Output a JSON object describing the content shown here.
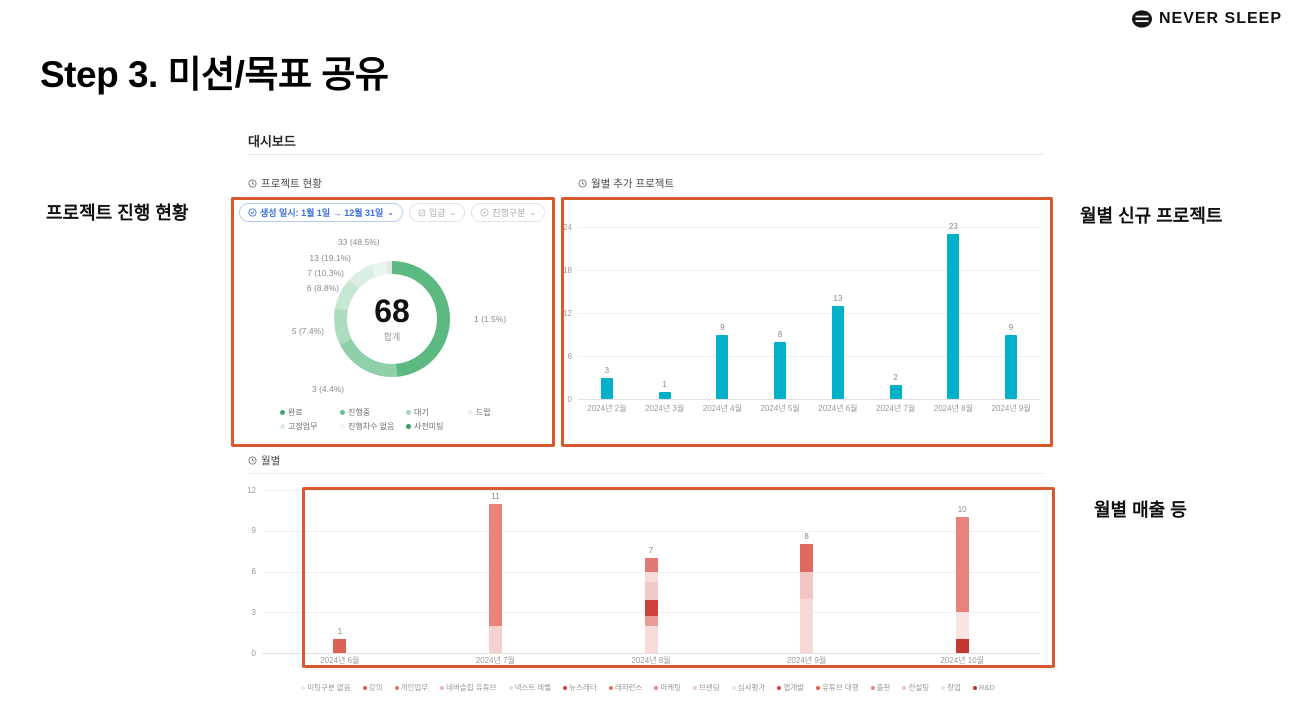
{
  "brand": {
    "name": "NEVER SLEEP"
  },
  "title": "Step 3. 미션/목표 공유",
  "annotations": {
    "left": "프로젝트 진행 현황",
    "right_top": "월별 신규 프로젝트",
    "right_bottom": "월별 매출 등"
  },
  "dashboard": {
    "title": "대시보드"
  },
  "filters": [
    {
      "label": "생성 일시: 1월 1일 → 12월 31일",
      "active": true
    },
    {
      "label": "입금",
      "active": false
    },
    {
      "label": "진행구분",
      "active": false
    }
  ],
  "icons": {
    "chevron_down": "⌄"
  },
  "chart_data": [
    {
      "type": "pie",
      "title": "프로젝트 현황",
      "center_value": "68",
      "center_label": "합계",
      "slices": [
        {
          "label": "완료",
          "value": 33,
          "pct": "48.5%",
          "color": "#5bb981"
        },
        {
          "label": "진행중",
          "value": 13,
          "pct": "19.1%",
          "color": "#8fd0a9"
        },
        {
          "label": "대기",
          "value": 7,
          "pct": "10.3%",
          "color": "#aedcc0"
        },
        {
          "label": "사전미팅",
          "value": 6,
          "pct": "8.8%",
          "color": "#c5e7d3"
        },
        {
          "label": "고정업무",
          "value": 5,
          "pct": "7.4%",
          "color": "#daeee2"
        },
        {
          "label": "진행차수 없음",
          "value": 3,
          "pct": "4.4%",
          "color": "#eaf5ee"
        },
        {
          "label": "드랍",
          "value": 1,
          "pct": "1.5%",
          "color": "#e3e6e3"
        }
      ],
      "legend": [
        {
          "label": "완료",
          "color": "#3fa873"
        },
        {
          "label": "진행중",
          "color": "#66c091"
        },
        {
          "label": "대기",
          "color": "#a3d8bb"
        },
        {
          "label": "드랍",
          "color": "#e7f2eb"
        },
        {
          "label": "고정업무",
          "color": "#dcede3"
        },
        {
          "label": "진행차수 없음",
          "color": "#eef6f1"
        },
        {
          "label": "사전미팅",
          "color": "#31a065"
        }
      ]
    },
    {
      "type": "bar",
      "title": "월별 추가 프로젝트",
      "categories": [
        "2024년 2월",
        "2024년 3월",
        "2024년 4월",
        "2024년 5월",
        "2024년 6월",
        "2024년 7월",
        "2024년 8월",
        "2024년 9월"
      ],
      "values": [
        3,
        1,
        9,
        8,
        13,
        2,
        23,
        9
      ],
      "ylim": [
        0,
        24
      ],
      "yticks": [
        24,
        18,
        12,
        6,
        0
      ],
      "bar_color": "#00b1c9"
    },
    {
      "type": "stacked-bar",
      "title": "월별",
      "ylim": [
        0,
        12
      ],
      "yticks": [
        12,
        9,
        6,
        3,
        0
      ],
      "bars": [
        {
          "category": "2024년 6월",
          "total": 1,
          "segments": [
            {
              "value": 1,
              "color": "#dc6258"
            }
          ]
        },
        {
          "category": "2024년 7월",
          "total": 11,
          "segments": [
            {
              "value": 2,
              "color": "#f5d2d1"
            },
            {
              "value": 9,
              "color": "#e8837c"
            }
          ]
        },
        {
          "category": "2024년 8월",
          "total": 7,
          "segments": [
            {
              "value": 2,
              "color": "#f7dbda"
            },
            {
              "value": 0.7,
              "color": "#ea9d97"
            },
            {
              "value": 1.2,
              "color": "#ca4239"
            },
            {
              "value": 1.3,
              "color": "#f2c9c6"
            },
            {
              "value": 0.8,
              "color": "#f7dbda"
            },
            {
              "value": 1,
              "color": "#e07b73"
            }
          ]
        },
        {
          "category": "2024년 9월",
          "total": 8,
          "segments": [
            {
              "value": 4,
              "color": "#f7d9d8"
            },
            {
              "value": 2,
              "color": "#f1c6c4"
            },
            {
              "value": 2,
              "color": "#dc6a61"
            }
          ]
        },
        {
          "category": "2024년 10월",
          "total": 10,
          "segments": [
            {
              "value": 1,
              "color": "#c8372f"
            },
            {
              "value": 2,
              "color": "#f9e4e3"
            },
            {
              "value": 7,
              "color": "#e8837c"
            }
          ]
        }
      ],
      "legend": [
        {
          "label": "미팅구분 없음",
          "color": "#e9e9e9"
        },
        {
          "label": "강의",
          "color": "#e05c52"
        },
        {
          "label": "개인업무",
          "color": "#e2736b"
        },
        {
          "label": "네버슬립 유튜브",
          "color": "#f0b5b1"
        },
        {
          "label": "넥스트 레벨",
          "color": "#f6d8d6"
        },
        {
          "label": "뉴스레터",
          "color": "#d8423a"
        },
        {
          "label": "레퍼런스",
          "color": "#e2736b"
        },
        {
          "label": "마케팅",
          "color": "#e88a83"
        },
        {
          "label": "브랜딩",
          "color": "#f3c7c4"
        },
        {
          "label": "심사평가",
          "color": "#f8e0de"
        },
        {
          "label": "앱개발",
          "color": "#d8423a"
        },
        {
          "label": "유튜브 대행",
          "color": "#e05c52"
        },
        {
          "label": "출판",
          "color": "#e8837c"
        },
        {
          "label": "컨설팅",
          "color": "#f3c7c4"
        },
        {
          "label": "창업",
          "color": "#f8e0de"
        },
        {
          "label": "R&D",
          "color": "#c3332c"
        }
      ]
    }
  ]
}
